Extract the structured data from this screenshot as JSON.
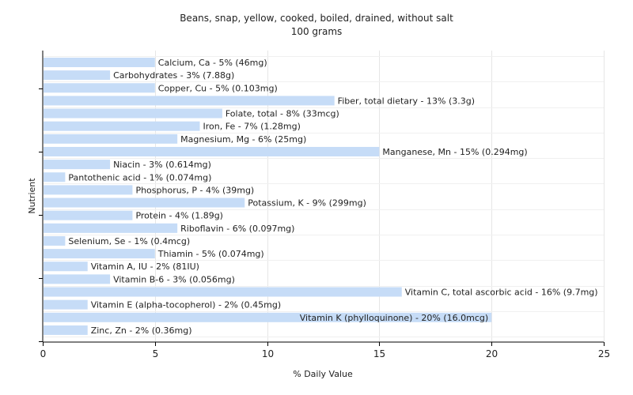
{
  "chart_data": {
    "type": "bar",
    "orientation": "horizontal",
    "title": "Beans, snap, yellow, cooked, boiled, drained, without salt",
    "subtitle": "100 grams",
    "xlabel": "% Daily Value",
    "ylabel": "Nutrient",
    "xlim": [
      0,
      25
    ],
    "xticks": [
      0,
      5,
      10,
      15,
      20,
      25
    ],
    "grid": true,
    "bar_color": "#c6dcf7",
    "categories": [
      "Calcium, Ca",
      "Carbohydrates",
      "Copper, Cu",
      "Fiber, total dietary",
      "Folate, total",
      "Iron, Fe",
      "Magnesium, Mg",
      "Manganese, Mn",
      "Niacin",
      "Pantothenic acid",
      "Phosphorus, P",
      "Potassium, K",
      "Protein",
      "Riboflavin",
      "Selenium, Se",
      "Thiamin",
      "Vitamin A, IU",
      "Vitamin B-6",
      "Vitamin C, total ascorbic acid",
      "Vitamin E (alpha-tocopherol)",
      "Vitamin K (phylloquinone)",
      "Zinc, Zn"
    ],
    "values": [
      5,
      3,
      5,
      13,
      8,
      7,
      6,
      15,
      3,
      1,
      4,
      9,
      4,
      6,
      1,
      5,
      2,
      3,
      16,
      2,
      20,
      2
    ],
    "data_labels": [
      "Calcium, Ca - 5% (46mg)",
      "Carbohydrates - 3% (7.88g)",
      "Copper, Cu - 5% (0.103mg)",
      "Fiber, total dietary - 13% (3.3g)",
      "Folate, total - 8% (33mcg)",
      "Iron, Fe - 7% (1.28mg)",
      "Magnesium, Mg - 6% (25mg)",
      "Manganese, Mn - 15% (0.294mg)",
      "Niacin - 3% (0.614mg)",
      "Pantothenic acid - 1% (0.074mg)",
      "Phosphorus, P - 4% (39mg)",
      "Potassium, K - 9% (299mg)",
      "Protein - 4% (1.89g)",
      "Riboflavin - 6% (0.097mg)",
      "Selenium, Se - 1% (0.4mcg)",
      "Thiamin - 5% (0.074mg)",
      "Vitamin A, IU - 2% (81IU)",
      "Vitamin B-6 - 3% (0.056mg)",
      "Vitamin C, total ascorbic acid - 16% (9.7mg)",
      "Vitamin E (alpha-tocopherol) - 2% (0.45mg)",
      "Vitamin K (phylloquinone) - 20% (16.0mcg)",
      "Zinc, Zn - 2% (0.36mg)"
    ]
  }
}
